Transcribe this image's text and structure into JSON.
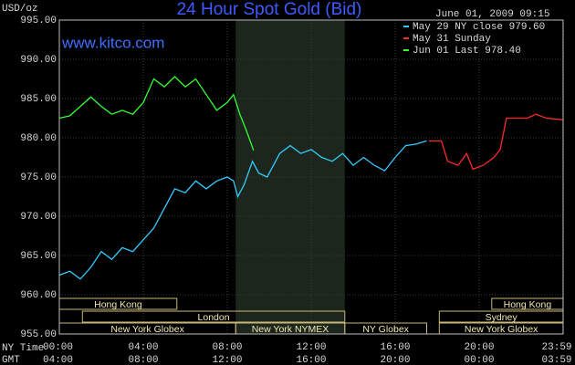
{
  "chart_data": {
    "type": "line",
    "title": "24 Hour Spot Gold (Bid)",
    "subtitle": "June 01, 2009 09:15",
    "watermark": "www.kitco.com",
    "y_label": "USD/oz",
    "x_label": "NY Time",
    "x2_label": "GMT",
    "xlim": [
      0,
      24
    ],
    "xticks": [
      {
        "value": 0,
        "label": "00:00"
      },
      {
        "value": 4,
        "label": "04:00"
      },
      {
        "value": 8,
        "label": "08:00"
      },
      {
        "value": 12,
        "label": "12:00"
      },
      {
        "value": 16,
        "label": "16:00"
      },
      {
        "value": 20,
        "label": "20:00"
      },
      {
        "value": 23.98,
        "label": "23:59"
      }
    ],
    "x2ticks": [
      {
        "value": 0,
        "label": "04:00"
      },
      {
        "value": 4,
        "label": "08:00"
      },
      {
        "value": 8,
        "label": "12:00"
      },
      {
        "value": 12,
        "label": "16:00"
      },
      {
        "value": 16,
        "label": "20:00"
      },
      {
        "value": 20,
        "label": "00:00"
      },
      {
        "value": 23.98,
        "label": "03:59"
      }
    ],
    "ylim": [
      955,
      995
    ],
    "yticks": [
      {
        "value": 955,
        "label": "955.00"
      },
      {
        "value": 960,
        "label": "960.00"
      },
      {
        "value": 965,
        "label": "965.00"
      },
      {
        "value": 970,
        "label": "970.00"
      },
      {
        "value": 975,
        "label": "975.00"
      },
      {
        "value": 980,
        "label": "980.00"
      },
      {
        "value": 985,
        "label": "985.00"
      },
      {
        "value": 990,
        "label": "990.00"
      },
      {
        "value": 995,
        "label": "995.00"
      }
    ],
    "grid": true,
    "shade": [
      8.4,
      13.6
    ],
    "series": [
      {
        "name": "May 29 NY close 979.60",
        "color": "#33ccff",
        "x": [
          0,
          0.5,
          1,
          1.5,
          2,
          2.5,
          3,
          3.5,
          4,
          4.5,
          5,
          5.5,
          6,
          6.5,
          7,
          7.5,
          8,
          8.3,
          8.5,
          8.8,
          9.2,
          9.5,
          9.9,
          10.5,
          11,
          11.5,
          12,
          12.5,
          13,
          13.5,
          14,
          14.5,
          15,
          15.5,
          16,
          16.5,
          17,
          17.5
        ],
        "values": [
          962.5,
          963,
          962,
          963.5,
          965.5,
          964.5,
          966,
          965.5,
          967,
          968.5,
          971,
          973.5,
          973,
          974.5,
          973.5,
          974.5,
          975,
          974.5,
          972.5,
          974,
          977,
          975.5,
          975,
          978,
          979,
          978,
          978.5,
          977.5,
          977,
          978,
          976.5,
          977.5,
          976.5,
          975.8,
          977.5,
          979,
          979.2,
          979.6
        ]
      },
      {
        "name": "May 31 Sunday",
        "color": "#ff2a2a",
        "x": [
          17.6,
          18.2,
          18.5,
          19,
          19.4,
          19.7,
          20.2,
          20.7,
          21,
          21.3,
          21.8,
          22.3,
          22.7,
          23.2,
          23.98
        ],
        "values": [
          979.6,
          979.6,
          977,
          976.5,
          978,
          976,
          976.5,
          977.5,
          978.5,
          982.5,
          982.5,
          982.5,
          983,
          982.5,
          982.3
        ]
      },
      {
        "name": "Jun 01 Last 978.40",
        "color": "#33ff33",
        "x": [
          0,
          0.5,
          1,
          1.5,
          2,
          2.5,
          3,
          3.5,
          4,
          4.5,
          5,
          5.5,
          6,
          6.5,
          7,
          7.5,
          8,
          8.3,
          8.6,
          8.9,
          9.25
        ],
        "values": [
          982.5,
          982.8,
          984,
          985.2,
          984,
          983,
          983.5,
          983,
          984.5,
          987.5,
          986.5,
          987.8,
          986.5,
          987.5,
          985.5,
          983.5,
          984.5,
          985.5,
          983,
          981,
          978.4
        ]
      }
    ],
    "session_rows": [
      [
        {
          "label": "Hong Kong",
          "start": 0,
          "end": 5.6
        },
        {
          "label": "Hong Kong",
          "start": 20.6,
          "end": 24
        }
      ],
      [
        {
          "label": "London",
          "start": 1.1,
          "end": 13.6
        },
        {
          "label": "Sydney",
          "start": 18.1,
          "end": 24
        }
      ],
      [
        {
          "label": "New York Globex",
          "start": 0,
          "end": 8.4
        },
        {
          "label": "New York NYMEX",
          "start": 8.4,
          "end": 13.6
        },
        {
          "label": "NY Globex",
          "start": 13.6,
          "end": 17.5
        },
        {
          "label": "New York Globex",
          "start": 18.1,
          "end": 24
        }
      ]
    ]
  }
}
